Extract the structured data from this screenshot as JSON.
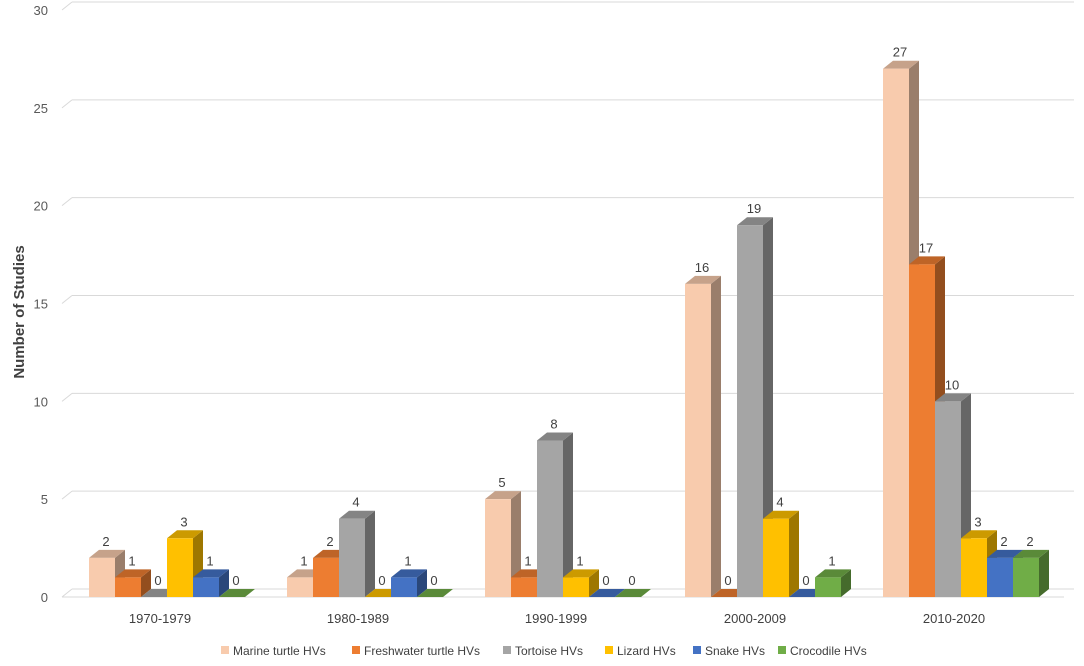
{
  "chart_data": {
    "type": "bar",
    "title": "",
    "xlabel": "",
    "ylabel": "Number of Studies",
    "ylim": [
      0,
      30
    ],
    "yticks": [
      0,
      5,
      10,
      15,
      20,
      25,
      30
    ],
    "grid": true,
    "legend_position": "bottom",
    "categories": [
      "1970-1979",
      "1980-1989",
      "1990-1999",
      "2000-2009",
      "2010-2020"
    ],
    "series": [
      {
        "name": "Marine turtle HVs",
        "color": "#F8CBAD",
        "values": [
          2,
          1,
          5,
          16,
          27
        ]
      },
      {
        "name": "Freshwater turtle HVs",
        "color": "#ED7D31",
        "values": [
          1,
          2,
          1,
          0,
          17
        ]
      },
      {
        "name": "Tortoise HVs",
        "color": "#A5A5A5",
        "values": [
          0,
          4,
          8,
          19,
          10
        ]
      },
      {
        "name": "Lizard HVs",
        "color": "#FFC000",
        "values": [
          3,
          0,
          1,
          4,
          3
        ]
      },
      {
        "name": "Snake HVs",
        "color": "#4472C4",
        "values": [
          1,
          1,
          0,
          0,
          2
        ]
      },
      {
        "name": "Crocodile HVs",
        "color": "#70AD47",
        "values": [
          0,
          0,
          0,
          1,
          2
        ]
      }
    ]
  }
}
